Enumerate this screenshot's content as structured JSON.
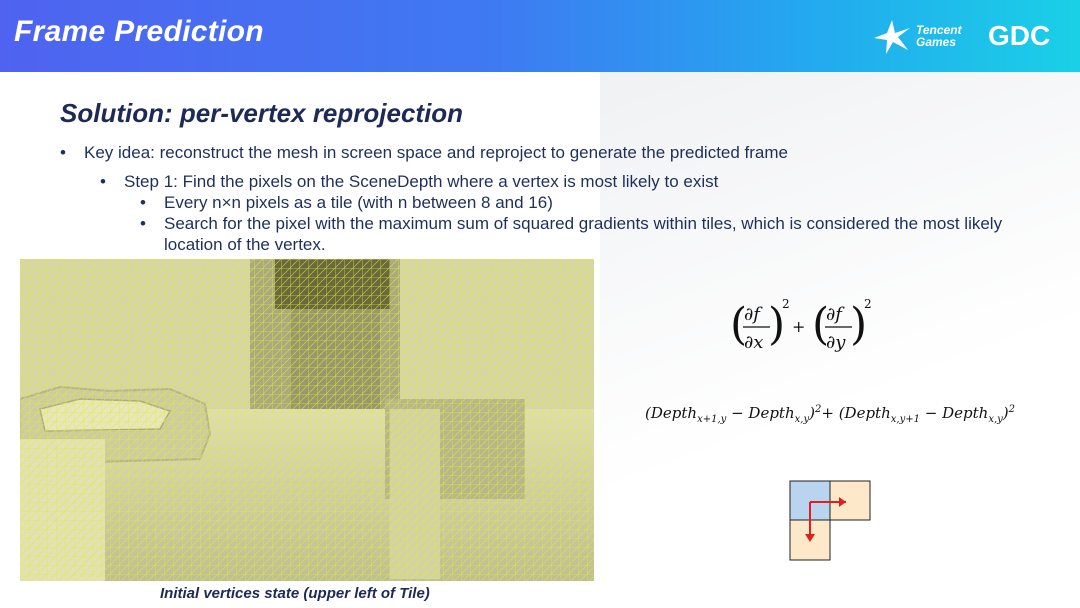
{
  "header": {
    "title": "Frame Prediction",
    "logo_tencent_line1": "Tencent",
    "logo_tencent_line2": "Games",
    "logo_gdc": "GDC"
  },
  "slide": {
    "subtitle": "Solution: per-vertex reprojection",
    "bullets": [
      "Key idea: reconstruct the mesh in screen space and reproject to generate the predicted frame",
      "Step 1: Find the pixels on the SceneDepth where a vertex is most likely to exist",
      "Every n×n pixels as a tile  (with n between 8 and 16)",
      "Search for the pixel with the maximum sum of squared gradients within tiles, which is considered the most likely location of the vertex."
    ],
    "bullet_marker": "•",
    "caption": "Initial vertices state (upper left of Tile)"
  },
  "formula1": {
    "df": "∂f",
    "dx": "∂x",
    "dy": "∂y",
    "plus": "+",
    "exp": "2"
  },
  "formula2": {
    "depth": "Depth",
    "sub_x1y": "x+1,y",
    "sub_xy": "x,y",
    "sub_xy1": "x,y+1",
    "minus": "−",
    "plus": "+",
    "exp": "2",
    "lparen": "(",
    "rparen": ")"
  },
  "colors": {
    "header_gradient_start": "#4f63f0",
    "header_gradient_end": "#1ad0e6",
    "text_dark": "#1e2f5a",
    "grid_line": "#e8e83a",
    "tile_blue": "#b8d4ef",
    "tile_peach": "#fde9c9",
    "arrow_red": "#e02020"
  }
}
